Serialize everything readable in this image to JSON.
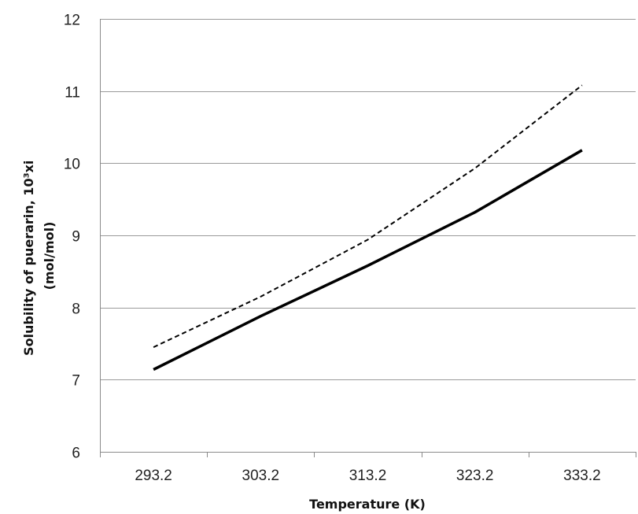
{
  "chart_data": {
    "type": "line",
    "title": "",
    "xlabel": "Temperature (K)",
    "ylabel_line1": "Solubility of puerarin, 10³xi",
    "ylabel_line2": "(mol/mol)",
    "categories": [
      "293.2",
      "303.2",
      "313.2",
      "323.2",
      "333.2"
    ],
    "ylim": [
      6,
      12
    ],
    "yticks": [
      6,
      7,
      8,
      9,
      10,
      11,
      12
    ],
    "grid": "horizontal",
    "legend": "none",
    "series": [
      {
        "style": "solid",
        "color": "#000000",
        "values": [
          7.14,
          7.88,
          8.58,
          9.32,
          10.18
        ]
      },
      {
        "style": "dashed",
        "color": "#000000",
        "values": [
          7.45,
          8.15,
          8.94,
          9.93,
          11.08
        ]
      }
    ]
  }
}
